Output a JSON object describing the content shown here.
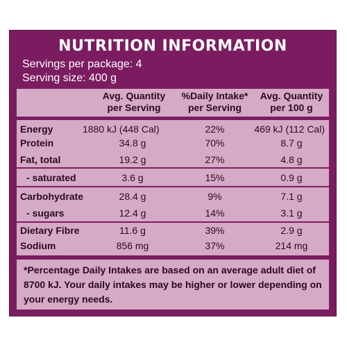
{
  "label": {
    "title": "NUTRITION INFORMATION",
    "servings_per_package": "Servings per package: 4",
    "serving_size": "Serving size: 400 g"
  },
  "columns": {
    "per_serving": "Avg. Quantity\nper Serving",
    "daily_intake": "%Daily Intake*\nper Serving",
    "per_100g": "Avg. Quantity\nper 100 g"
  },
  "rows": [
    {
      "nutrient": "Energy",
      "per_serving": "1880 kJ (448 Cal)",
      "daily_intake": "22%",
      "per_100g": "469 kJ (112 Cal)"
    },
    {
      "nutrient": "Protein",
      "per_serving": "34.8 g",
      "daily_intake": "70%",
      "per_100g": "8.7 g"
    },
    {
      "nutrient": "Fat, total",
      "per_serving": "19.2 g",
      "daily_intake": "27%",
      "per_100g": "4.8 g"
    },
    {
      "nutrient": "- saturated",
      "per_serving": "3.6 g",
      "daily_intake": "15%",
      "per_100g": "0.9 g"
    },
    {
      "nutrient": "Carbohydrate",
      "per_serving": "28.4 g",
      "daily_intake": "9%",
      "per_100g": "7.1 g"
    },
    {
      "nutrient": "- sugars",
      "per_serving": "12.4 g",
      "daily_intake": "14%",
      "per_100g": "3.1 g"
    },
    {
      "nutrient": "Dietary Fibre",
      "per_serving": "11.6 g",
      "daily_intake": "39%",
      "per_100g": "2.9 g"
    },
    {
      "nutrient": "Sodium",
      "per_serving": "856 mg",
      "daily_intake": "37%",
      "per_100g": "214 mg"
    }
  ],
  "footnote": "*Percentage Daily Intakes are based on an average adult diet of 8700 kJ. Your daily intakes may be higher or lower depending on your energy needs.",
  "colors": {
    "panel": "#7b1c60",
    "table": "#d5aac6",
    "text": "#2a0a20"
  }
}
